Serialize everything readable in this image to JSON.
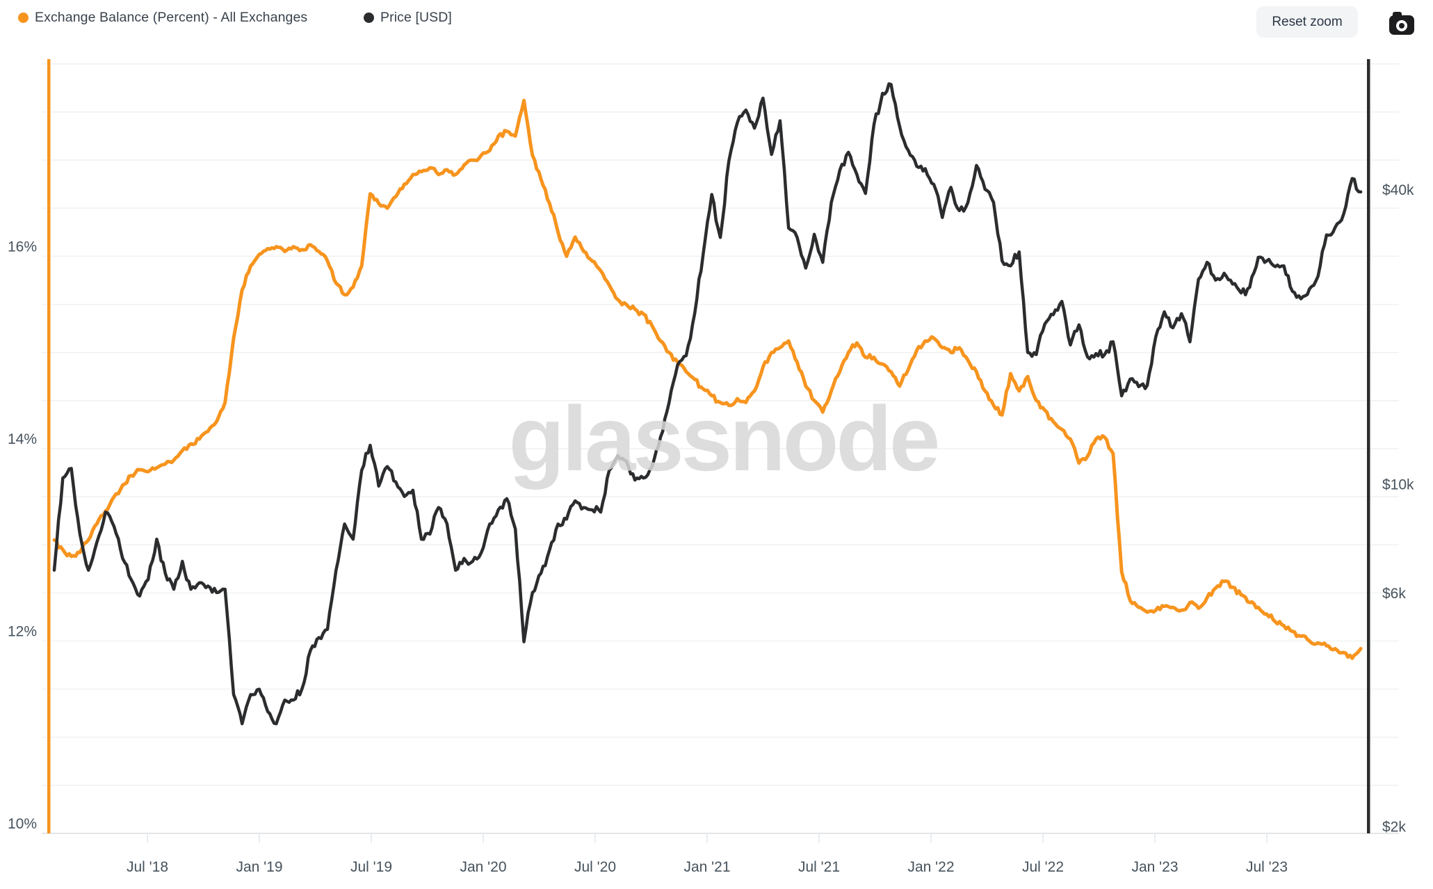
{
  "legend": {
    "items": [
      {
        "label": "Exchange Balance (Percent) - All Exchanges",
        "color": "#F7941E"
      },
      {
        "label": "Price [USD]",
        "color": "#2B2C2E"
      }
    ]
  },
  "toolbar": {
    "reset_label": "Reset zoom",
    "camera_icon": "camera-icon"
  },
  "watermark": "glassnode",
  "chart_data": {
    "type": "line",
    "title": "",
    "grid": "horizontal, every 0.5% of left axis",
    "legend_position": "top-left",
    "x_axis": {
      "kind": "time",
      "range_decimal_years": [
        2018.05,
        2023.98
      ],
      "tick_labels": [
        "Jul '18",
        "Jan '19",
        "Jul '19",
        "Jan '20",
        "Jul '20",
        "Jan '21",
        "Jul '21",
        "Jan '22",
        "Jul '22",
        "Jan '23",
        "Jul '23"
      ],
      "tick_years": [
        2018.5,
        2019.0,
        2019.5,
        2020.0,
        2020.5,
        2021.0,
        2021.5,
        2022.0,
        2022.5,
        2023.0,
        2023.5
      ]
    },
    "left_axis": {
      "title": "Exchange Balance (Percent)",
      "unit": "%",
      "scale": "linear",
      "range": [
        10,
        18.05
      ],
      "gridline_step": 0.5,
      "tick_labels": [
        "16%",
        "14%",
        "12%",
        "10%"
      ],
      "tick_values": [
        16,
        14,
        12,
        10
      ],
      "axis_line_color": "#F7941E"
    },
    "right_axis": {
      "title": "Price [USD]",
      "unit": "USD",
      "scale": "log",
      "range": [
        2030,
        77500
      ],
      "tick_labels": [
        "$40k",
        "$10k",
        "$6k",
        "$2k"
      ],
      "tick_values": [
        40000,
        10000,
        6000,
        2000
      ],
      "axis_line_color": "#2B2C2E"
    },
    "sampling": {
      "t0_decimal_year": 2018.084,
      "dt_decimal_year": 0.03814,
      "note": "approx. biweekly samples read from chart, Feb 2018 - Dec 2023"
    },
    "series": [
      {
        "name": "Exchange Balance (Percent) - All Exchanges",
        "axis": "left",
        "unit": "%",
        "color": "#F7941E",
        "values": [
          13.05,
          12.95,
          12.88,
          12.92,
          13.05,
          13.22,
          13.35,
          13.5,
          13.62,
          13.72,
          13.78,
          13.76,
          13.8,
          13.84,
          13.88,
          13.98,
          14.05,
          14.1,
          14.18,
          14.28,
          14.48,
          15.15,
          15.65,
          15.9,
          16.02,
          16.08,
          16.1,
          16.05,
          16.1,
          16.07,
          16.12,
          16.05,
          15.95,
          15.72,
          15.6,
          15.68,
          15.9,
          16.65,
          16.55,
          16.5,
          16.62,
          16.75,
          16.85,
          16.88,
          16.92,
          16.85,
          16.9,
          16.85,
          16.95,
          17.0,
          17.05,
          17.1,
          17.25,
          17.3,
          17.25,
          17.62,
          17.05,
          16.8,
          16.55,
          16.25,
          16.0,
          16.2,
          16.05,
          15.95,
          15.85,
          15.7,
          15.55,
          15.5,
          15.45,
          15.4,
          15.28,
          15.12,
          15.0,
          14.9,
          14.8,
          14.72,
          14.62,
          14.55,
          14.48,
          14.45,
          14.52,
          14.48,
          14.6,
          14.85,
          15.0,
          15.05,
          15.12,
          14.9,
          14.65,
          14.5,
          14.38,
          14.6,
          14.8,
          15.0,
          15.1,
          14.95,
          14.95,
          14.88,
          14.8,
          14.65,
          14.82,
          15.02,
          15.12,
          15.15,
          15.05,
          15.0,
          15.05,
          14.92,
          14.8,
          14.6,
          14.45,
          14.35,
          14.78,
          14.6,
          14.75,
          14.5,
          14.4,
          14.28,
          14.2,
          14.1,
          13.85,
          13.92,
          14.1,
          14.12,
          13.95,
          12.72,
          12.42,
          12.35,
          12.3,
          12.32,
          12.36,
          12.35,
          12.32,
          12.4,
          12.34,
          12.45,
          12.55,
          12.62,
          12.56,
          12.48,
          12.4,
          12.35,
          12.28,
          12.2,
          12.16,
          12.1,
          12.05,
          12.0,
          11.98,
          11.95,
          11.92,
          11.88,
          11.82,
          11.92
        ]
      },
      {
        "name": "Price [USD]",
        "axis": "right",
        "unit": "USD (thousands)",
        "color": "#2B2C2E",
        "values_k_usd": [
          7.0,
          10.8,
          11.3,
          8.3,
          7.0,
          8.0,
          9.2,
          8.6,
          7.4,
          6.7,
          6.2,
          6.7,
          8.1,
          6.9,
          6.4,
          7.3,
          6.4,
          6.6,
          6.5,
          6.3,
          6.4,
          3.9,
          3.4,
          3.9,
          4.0,
          3.6,
          3.4,
          3.8,
          3.8,
          4.0,
          4.8,
          5.1,
          5.3,
          7.0,
          8.7,
          8.1,
          11.2,
          12.6,
          10.4,
          11.4,
          10.6,
          9.9,
          10.2,
          8.1,
          8.3,
          9.4,
          8.7,
          7.0,
          7.4,
          7.3,
          7.6,
          8.7,
          9.3,
          9.8,
          8.5,
          5.0,
          6.3,
          6.9,
          7.7,
          8.7,
          8.9,
          9.7,
          9.4,
          9.3,
          9.2,
          11.2,
          12.0,
          11.7,
          10.7,
          10.8,
          11.4,
          13.1,
          15.4,
          18.4,
          19.2,
          23.4,
          31.0,
          41.0,
          33.5,
          48.0,
          57.5,
          61.0,
          56.0,
          64.5,
          49.5,
          58.0,
          35.0,
          33.5,
          29.0,
          34.0,
          29.8,
          39.5,
          46.0,
          50.0,
          45.0,
          41.2,
          57.0,
          66.0,
          68.8,
          56.5,
          50.5,
          46.8,
          46.3,
          43.0,
          36.8,
          42.4,
          38.0,
          39.5,
          47.0,
          42.0,
          39.5,
          30.0,
          29.3,
          31.3,
          19.5,
          19.3,
          22.3,
          23.3,
          24.8,
          20.2,
          22.2,
          19.1,
          19.4,
          19.3,
          20.5,
          15.9,
          17.2,
          16.6,
          16.7,
          21.0,
          23.6,
          21.9,
          23.4,
          20.5,
          27.5,
          29.8,
          27.4,
          28.3,
          26.9,
          25.8,
          26.5,
          30.5,
          30.0,
          29.2,
          29.3,
          26.0,
          25.1,
          26.3,
          27.9,
          33.9,
          35.1,
          37.4,
          44.2,
          41.5
        ]
      }
    ]
  },
  "colors": {
    "background": "#ffffff",
    "gridline": "#f0f1f2",
    "axis_bottom_line": "#e3e6e9",
    "tick_label": "#46525c",
    "legend_text": "#39424c",
    "watermark": "#d8d8d8",
    "reset_button_bg": "#f3f4f6",
    "reset_button_text": "#2b3644",
    "camera_button": "#1d1d1f"
  }
}
